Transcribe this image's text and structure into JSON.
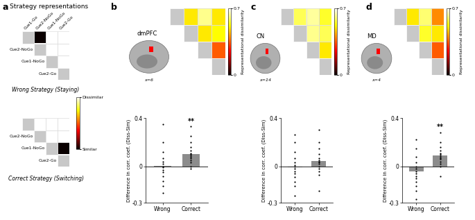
{
  "chart_data": [
    {
      "type": "heatmap",
      "panel": "a",
      "title": "Strategy representations",
      "labels": [
        "Cue1-Go",
        "Cue2-NoGo",
        "Cue1-NoGo",
        "Cue2-Go"
      ],
      "matrices": [
        {
          "subtitle": "Wrong Strategy (Staying)",
          "cells": [
            [
              null,
              0,
              1,
              1
            ],
            [
              null,
              null,
              1,
              1
            ],
            [
              null,
              null,
              null,
              1
            ],
            [
              null,
              null,
              null,
              null
            ]
          ]
        },
        {
          "subtitle": "Correct Strategy (Switching)",
          "cells": [
            [
              null,
              1,
              1,
              1
            ],
            [
              null,
              null,
              1,
              1
            ],
            [
              null,
              null,
              null,
              0
            ],
            [
              null,
              null,
              null,
              null
            ]
          ]
        }
      ],
      "colorbar": {
        "range": [
          0,
          1
        ],
        "ticks": [
          {
            "value": 1,
            "label": "Dissimilar"
          },
          {
            "value": 0,
            "label": "Similar"
          }
        ]
      }
    },
    {
      "type": "heatmap",
      "panel": "b",
      "region": "dmPFC",
      "slice": "x=6",
      "cells": [
        [
          null,
          0.5,
          0.62,
          0.5
        ],
        [
          null,
          null,
          0.5,
          0.52
        ],
        [
          null,
          null,
          null,
          0.35
        ],
        [
          null,
          null,
          null,
          null
        ]
      ],
      "colorbar": {
        "range": [
          0,
          0.7
        ],
        "ticks": [
          0,
          0.7
        ],
        "label": "Representational dissimilarity"
      }
    },
    {
      "type": "bar",
      "categories": [
        "Wrong",
        "Correct"
      ],
      "values": [
        0.005,
        0.1
      ],
      "points": [
        [
          0.35,
          0.2,
          0.12,
          0.07,
          0.04,
          0.02,
          0.0,
          -0.01,
          -0.03,
          -0.05,
          -0.08,
          -0.12,
          -0.16,
          -0.22
        ],
        [
          0.33,
          0.25,
          0.2,
          0.16,
          0.13,
          0.11,
          0.1,
          0.09,
          0.08,
          0.07,
          0.05,
          0.03,
          0.0,
          -0.02
        ]
      ],
      "ylabel": "Difference in corr. coef. (Diss-Sim)",
      "ylim": [
        -0.3,
        0.4
      ],
      "yticks": [
        -0.3,
        0,
        0.4
      ],
      "color": "#8c8c8c",
      "annotations": [
        {
          "text": "**",
          "category": "Correct"
        }
      ]
    },
    {
      "type": "heatmap",
      "panel": "c",
      "region": "CN",
      "slice": "x=14",
      "cells": [
        [
          null,
          0.58,
          0.63,
          0.55
        ],
        [
          null,
          null,
          0.62,
          0.58
        ],
        [
          null,
          null,
          null,
          0.5
        ],
        [
          null,
          null,
          null,
          null
        ]
      ],
      "colorbar": {
        "range": [
          0,
          0.7
        ],
        "ticks": [
          0,
          0.7
        ],
        "label": "Representational dissimilarity"
      }
    },
    {
      "type": "bar",
      "categories": [
        "Wrong",
        "Correct"
      ],
      "values": [
        -0.005,
        0.045
      ],
      "points": [
        [
          0.26,
          0.2,
          0.12,
          0.07,
          0.03,
          0.01,
          0.0,
          -0.02,
          -0.04,
          -0.06,
          -0.09,
          -0.13,
          -0.16,
          -0.24
        ],
        [
          0.3,
          0.2,
          0.15,
          0.1,
          0.07,
          0.05,
          0.04,
          0.03,
          0.02,
          0.0,
          -0.02,
          -0.04,
          -0.07,
          -0.2
        ]
      ],
      "ylabel": "Difference in corr. coef. (Diss-Sim)",
      "ylim": [
        -0.3,
        0.4
      ],
      "yticks": [
        -0.3,
        0,
        0.4
      ],
      "color": "#8c8c8c",
      "annotations": []
    },
    {
      "type": "heatmap",
      "panel": "d",
      "region": "MD",
      "slice": "x=4",
      "cells": [
        [
          null,
          0.5,
          0.6,
          0.4
        ],
        [
          null,
          null,
          0.55,
          0.5
        ],
        [
          null,
          null,
          null,
          0.35
        ],
        [
          null,
          null,
          null,
          null
        ]
      ],
      "colorbar": {
        "range": [
          0,
          0.7
        ],
        "ticks": [
          0,
          0.7
        ],
        "label": "Representational dissimilarity"
      }
    },
    {
      "type": "bar",
      "categories": [
        "Wrong",
        "Correct"
      ],
      "values": [
        -0.04,
        0.09
      ],
      "points": [
        [
          0.22,
          0.15,
          0.08,
          0.03,
          0.0,
          -0.02,
          -0.04,
          -0.06,
          -0.08,
          -0.1,
          -0.13,
          -0.16,
          -0.2,
          -0.27
        ],
        [
          0.28,
          0.2,
          0.16,
          0.13,
          0.11,
          0.1,
          0.09,
          0.08,
          0.07,
          0.06,
          0.04,
          0.02,
          0.0,
          -0.08
        ]
      ],
      "ylabel": "Difference in corr. coef. (Diss-Sim)",
      "ylim": [
        -0.3,
        0.4
      ],
      "yticks": [
        -0.3,
        0,
        0.4
      ],
      "color": "#8c8c8c",
      "annotations": [
        {
          "text": "**",
          "category": "Correct"
        }
      ]
    }
  ]
}
